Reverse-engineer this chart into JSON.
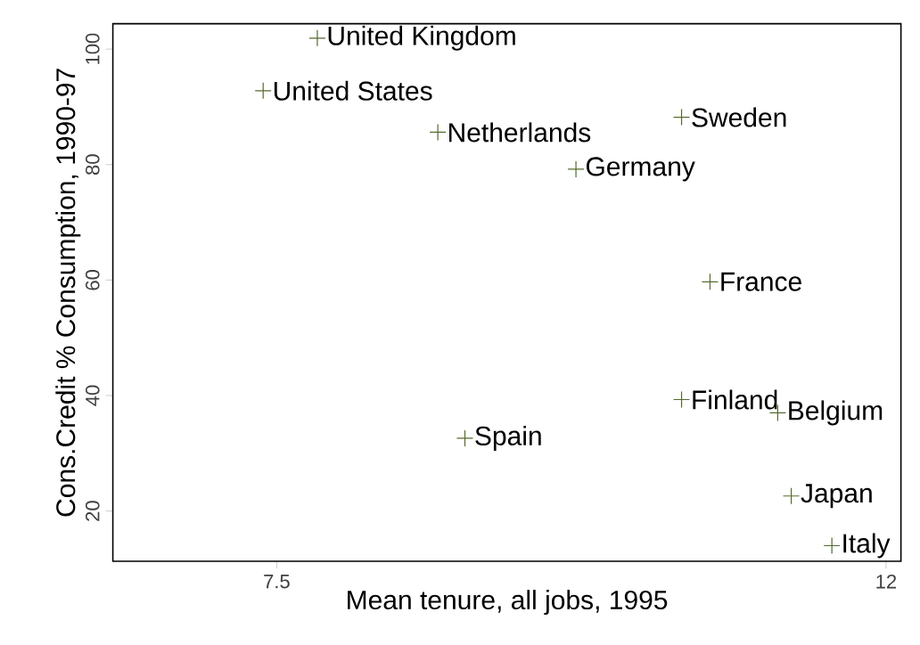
{
  "chart_data": {
    "type": "scatter",
    "xlabel": "Mean tenure, all jobs, 1995",
    "ylabel": "Cons.Credit % Consumption, 1990-97",
    "xlim": [
      6.29,
      12.11
    ],
    "ylim": [
      11.3,
      104.4
    ],
    "xticks": [
      7.5,
      12
    ],
    "yticks": [
      20,
      40,
      60,
      80,
      100
    ],
    "grid": false,
    "marker": "cross",
    "series": [
      {
        "color": "#556b2f",
        "x": [
          7.8,
          7.4,
          8.69,
          9.71,
          10.49,
          10.7,
          10.49,
          11.2,
          8.89,
          11.3,
          11.6
        ],
        "values": [
          101.9,
          92.8,
          85.6,
          79.2,
          88.2,
          59.7,
          39.3,
          37.0,
          32.6,
          22.6,
          14.0
        ]
      }
    ],
    "annotations": [
      {
        "text": "United Kingdom",
        "x": 7.8,
        "y": 101.9
      },
      {
        "text": "United States",
        "x": 7.4,
        "y": 92.8
      },
      {
        "text": "Netherlands",
        "x": 8.69,
        "y": 85.6
      },
      {
        "text": "Germany",
        "x": 9.71,
        "y": 79.2
      },
      {
        "text": "Sweden",
        "x": 10.49,
        "y": 88.2
      },
      {
        "text": "France",
        "x": 10.7,
        "y": 59.7
      },
      {
        "text": "Finland",
        "x": 10.49,
        "y": 39.3
      },
      {
        "text": "Belgium",
        "x": 11.2,
        "y": 37.0
      },
      {
        "text": "Spain",
        "x": 8.89,
        "y": 32.6
      },
      {
        "text": "Japan",
        "x": 11.3,
        "y": 22.6
      },
      {
        "text": "Italy",
        "x": 11.6,
        "y": 14.0
      }
    ]
  }
}
